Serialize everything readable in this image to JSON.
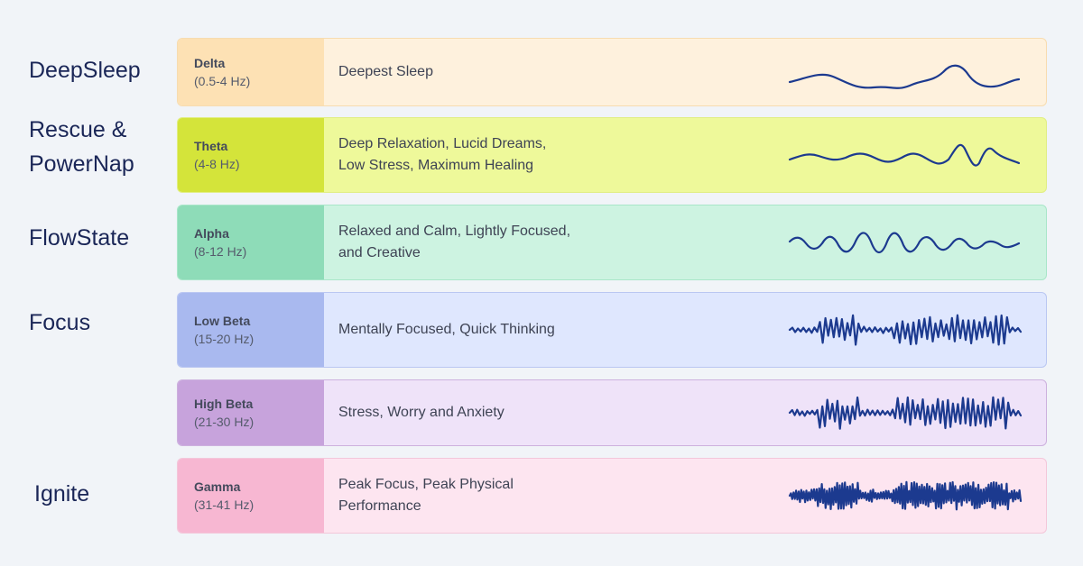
{
  "modes": [
    {
      "label": "DeepSleep"
    },
    {
      "label": "Rescue &\nPowerNap"
    },
    {
      "label": "FlowState"
    },
    {
      "label": "Focus"
    },
    {
      "label": "Ignite"
    }
  ],
  "bands": [
    {
      "name": "Delta",
      "range": "(0.5-4 Hz)",
      "description": "Deepest Sleep",
      "band_color": "#fde1b4",
      "row_color": "#fef1dd",
      "border_color": "#f7dcb0"
    },
    {
      "name": "Theta",
      "range": "(4-8 Hz)",
      "description": "Deep Relaxation, Lucid Dreams, Low Stress, Maximum Healing",
      "band_color": "#d4e43a",
      "row_color": "#eef99a",
      "border_color": "#e1ee85"
    },
    {
      "name": "Alpha",
      "range": "(8-12 Hz)",
      "description": "Relaxed and Calm, Lightly Focused, and Creative",
      "band_color": "#8edcb8",
      "row_color": "#cdf3e1",
      "border_color": "#a9e6c9"
    },
    {
      "name": "Low Beta",
      "range": "(15-20 Hz)",
      "description": "Mentally Focused, Quick Thinking",
      "band_color": "#a9b9ef",
      "row_color": "#dfe7fe",
      "border_color": "#bac7f2"
    },
    {
      "name": "High Beta",
      "range": "(21-30 Hz)",
      "description": "Stress, Worry and Anxiety",
      "band_color": "#c7a3dc",
      "row_color": "#efe3f9",
      "border_color": "#cdb1de"
    },
    {
      "name": "Gamma",
      "range": "(31-41 Hz)",
      "description": "Peak Focus, Peak Physical Performance",
      "band_color": "#f7b7d2",
      "row_color": "#fde5f0",
      "border_color": "#f3c7da"
    }
  ],
  "colors": {
    "background": "#f1f4f8",
    "text_dark": "#1a2657",
    "wave": "#1c3a8f"
  }
}
